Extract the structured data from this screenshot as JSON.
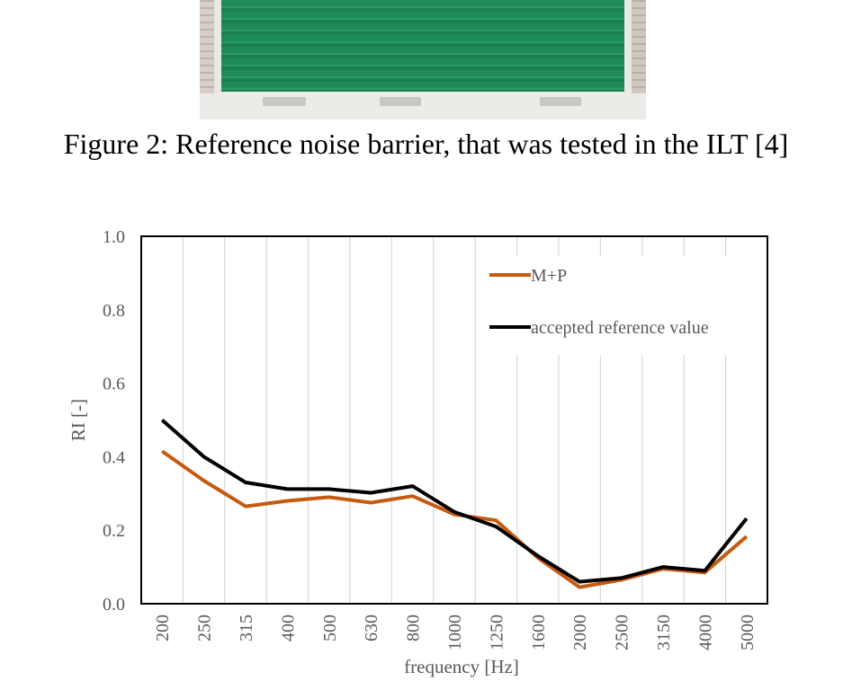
{
  "figure_caption": "Figure 2: Reference noise barrier, that was tested in the ILT [4]",
  "chart_data": {
    "type": "line",
    "categories": [
      "200",
      "250",
      "315",
      "400",
      "500",
      "630",
      "800",
      "1000",
      "1250",
      "1600",
      "2000",
      "2500",
      "3150",
      "4000",
      "5000"
    ],
    "series": [
      {
        "name": "M+P",
        "color": "#c55a11",
        "values": [
          0.415,
          0.335,
          0.265,
          0.28,
          0.29,
          0.275,
          0.293,
          0.243,
          0.227,
          0.125,
          0.045,
          0.065,
          0.095,
          0.085,
          0.183
        ]
      },
      {
        "name": "accepted reference value",
        "color": "#000000",
        "values": [
          0.5,
          0.4,
          0.33,
          0.312,
          0.312,
          0.302,
          0.32,
          0.25,
          0.21,
          0.13,
          0.06,
          0.07,
          0.1,
          0.09,
          0.232
        ]
      }
    ],
    "yticks": [
      "0.0",
      "0.2",
      "0.4",
      "0.6",
      "0.8",
      "1.0"
    ],
    "ylim": [
      0,
      1.0
    ],
    "xlabel": "frequency [Hz]",
    "ylabel": "RI [-]",
    "grid": "vertical",
    "legend_position": "top-right"
  }
}
